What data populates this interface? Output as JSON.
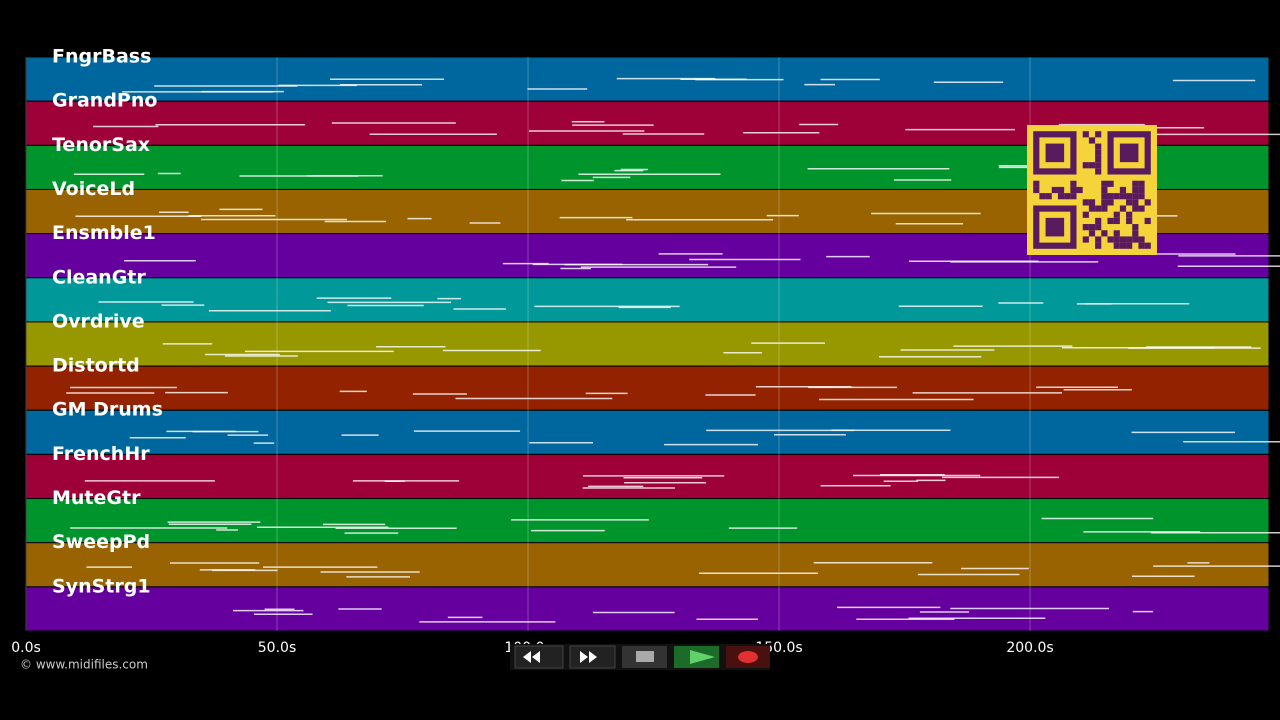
{
  "tracks": [
    {
      "name": "FngrBass",
      "color": "#00669e"
    },
    {
      "name": "GrandPno",
      "color": "#9e0038"
    },
    {
      "name": "TenorSax",
      "color": "#00952c"
    },
    {
      "name": "VoiceLd",
      "color": "#986300"
    },
    {
      "name": "Ensmble1",
      "color": "#65009e"
    },
    {
      "name": "CleanGtr",
      "color": "#009898"
    },
    {
      "name": "Ovrdrive",
      "color": "#979700"
    },
    {
      "name": "Distortd",
      "color": "#932300"
    },
    {
      "name": "GM Drums",
      "color": "#00669e"
    },
    {
      "name": "FrenchHr",
      "color": "#9e0038"
    },
    {
      "name": "MuteGtr",
      "color": "#00952c"
    },
    {
      "name": "SweepPd",
      "color": "#986300"
    },
    {
      "name": "SynStrg1",
      "color": "#65009e"
    }
  ],
  "time_axis": {
    "xlim": [
      0,
      247.6
    ],
    "ticks": [
      {
        "value": 0,
        "label": "0.0s"
      },
      {
        "value": 50,
        "label": "50.0s"
      },
      {
        "value": 100,
        "label": "100.0s"
      },
      {
        "value": 150,
        "label": "150.0s"
      },
      {
        "value": 200,
        "label": "200.0s"
      }
    ]
  },
  "copyright": "© www.midifiles.com"
}
